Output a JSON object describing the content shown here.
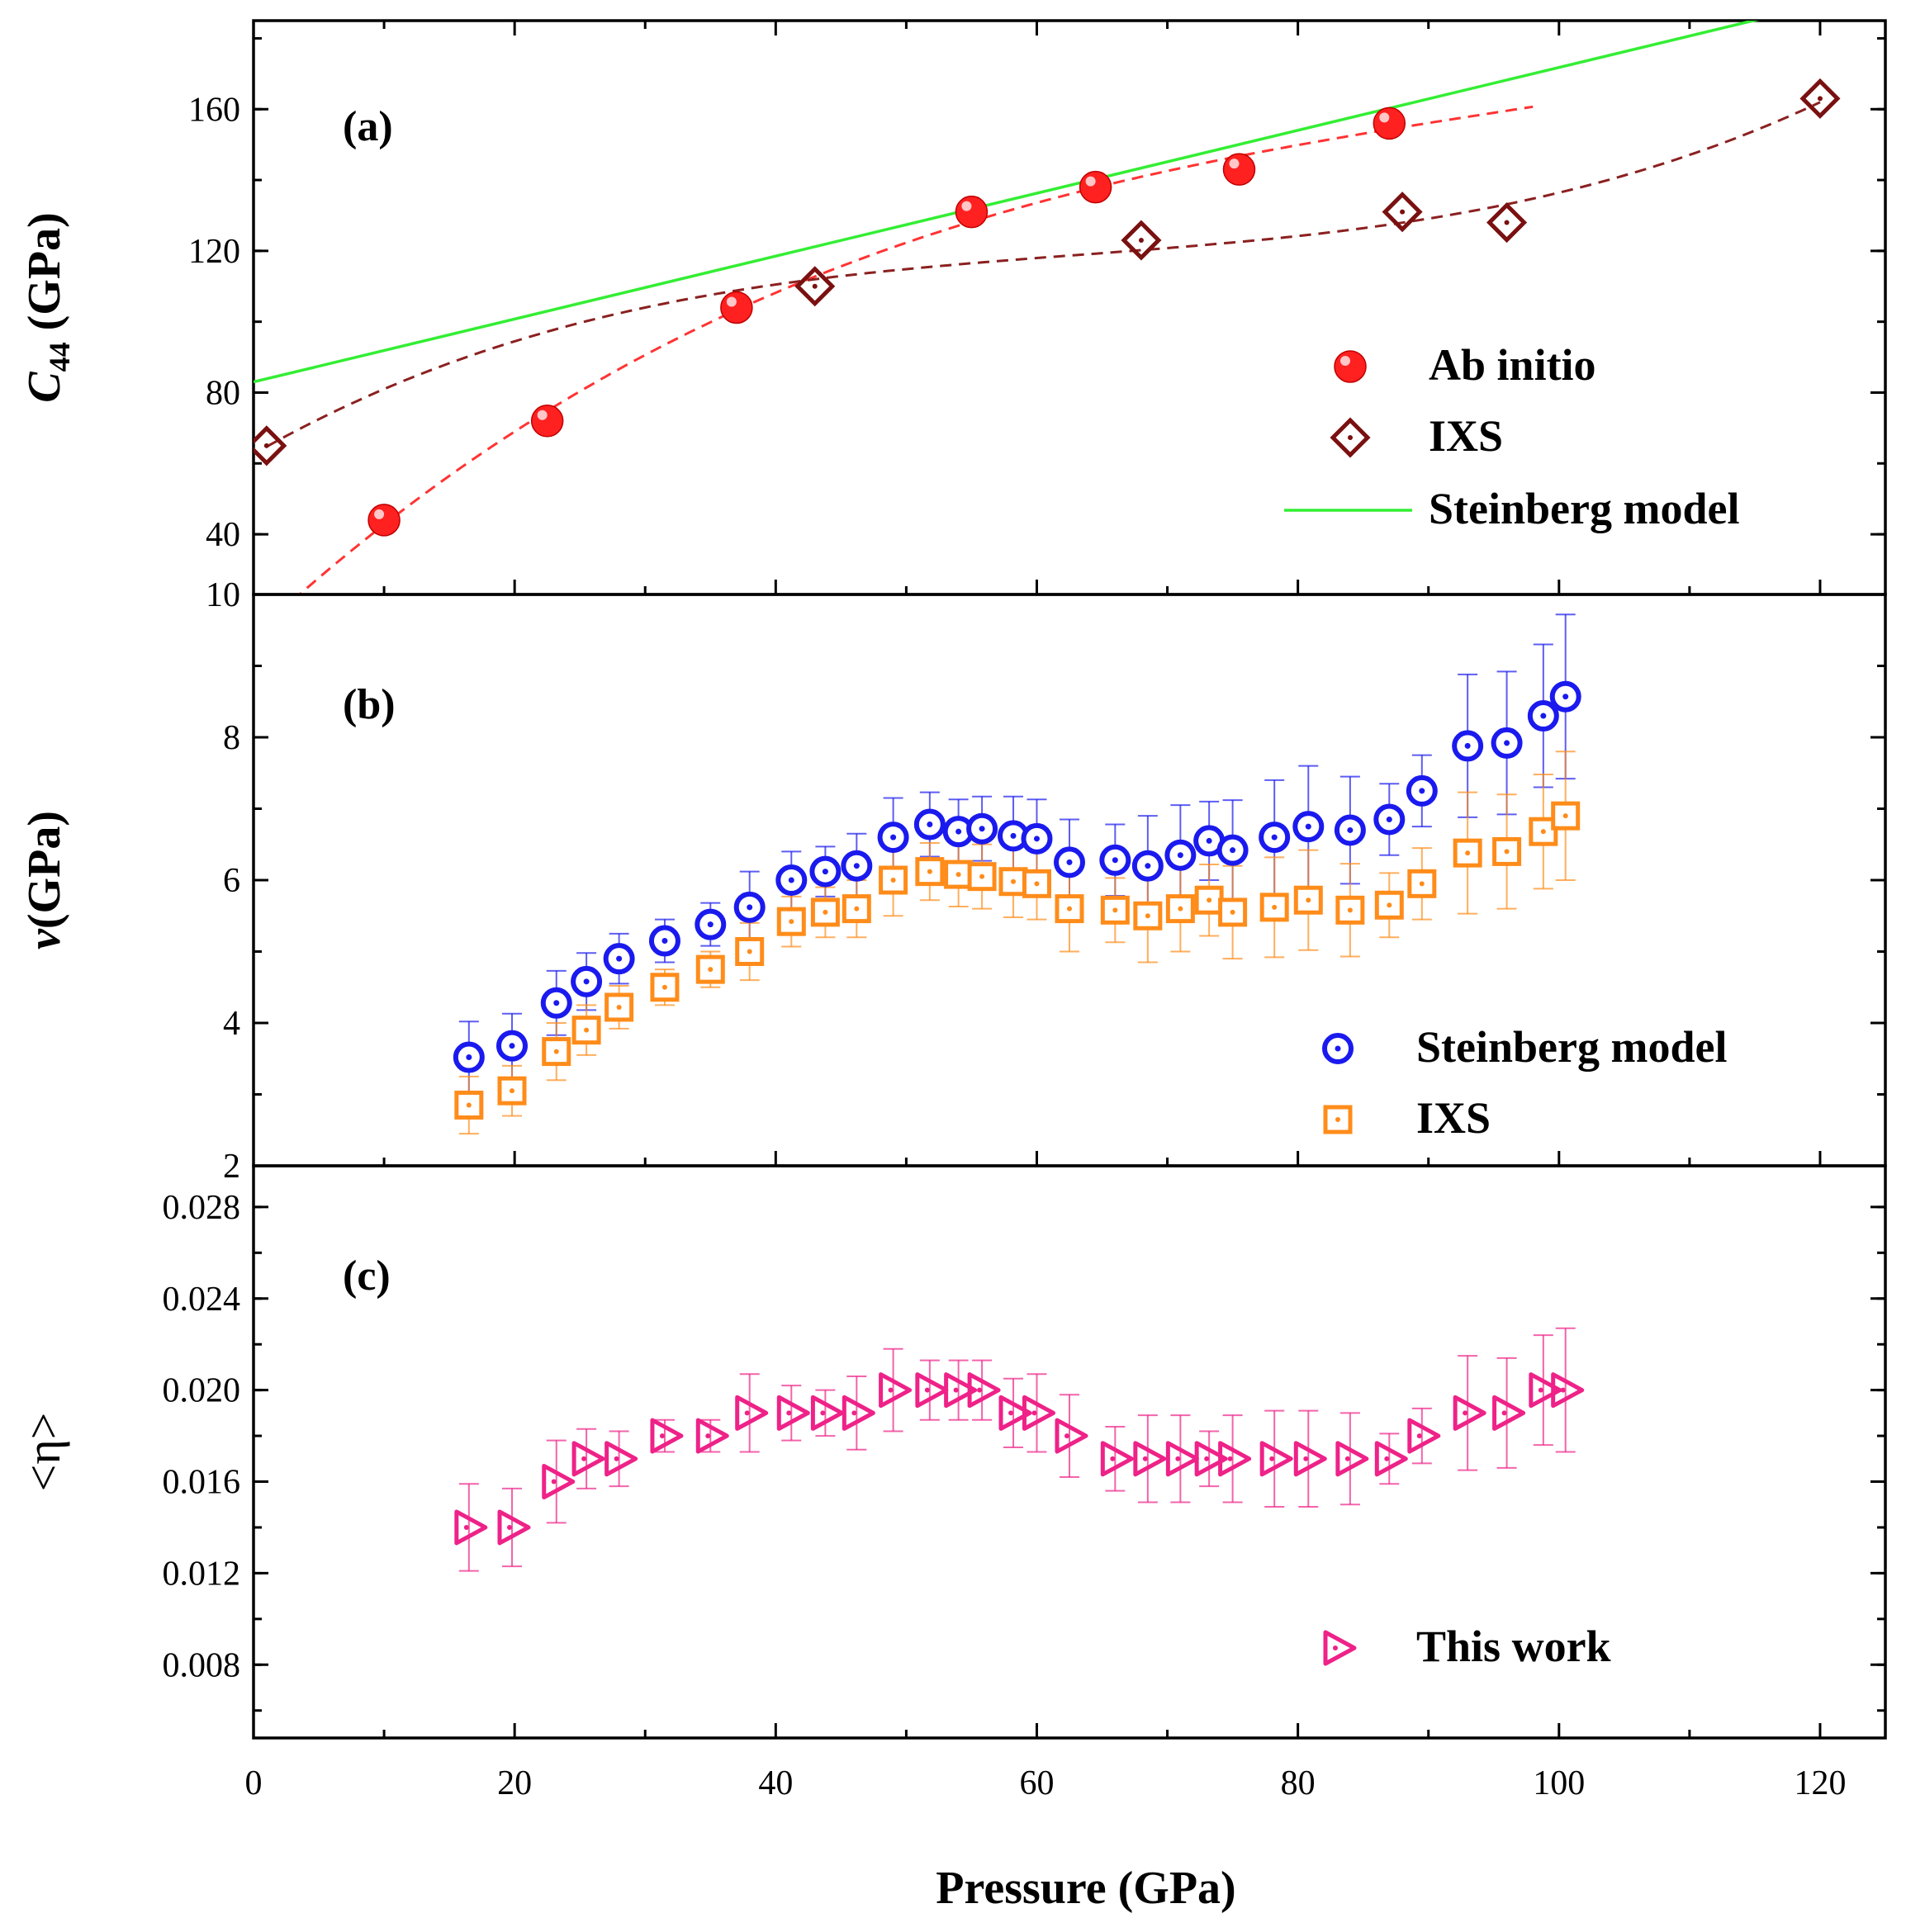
{
  "chart_data": [
    {
      "panel": "a",
      "panel_label": "(a)",
      "type": "scatter",
      "ylabel": "C44 (GPa)",
      "ylabel_main": "C",
      "ylabel_sub": "44",
      "ylabel_rest": " (GPa)",
      "xlim": [
        0,
        125
      ],
      "ylim": [
        23,
        185
      ],
      "yticks": [
        40,
        80,
        120,
        160
      ],
      "legend_position": "bottom-right",
      "series": [
        {
          "name": "Ab initio",
          "marker": "filled-sphere",
          "color": "#ff2020",
          "x": [
            10,
            22.5,
            37,
            55,
            64.5,
            75.5,
            87
          ],
          "y": [
            44,
            72,
            104,
            131,
            138,
            143,
            156
          ],
          "fit": {
            "style": "dashed",
            "color": "#ff3333",
            "x_range": [
              3,
              98
            ]
          }
        },
        {
          "name": "IXS",
          "marker": "diamond-open-dot",
          "color": "#7a1010",
          "x": [
            1,
            43,
            68,
            88,
            96,
            120
          ],
          "y": [
            65,
            110,
            123,
            131,
            128,
            163
          ],
          "fit": {
            "style": "dashed",
            "color": "#8b2020",
            "x_range": [
              1,
              120
            ]
          }
        },
        {
          "name": "Steinberg model",
          "marker": "line",
          "color": "#33ee33",
          "x": [
            0,
            116
          ],
          "y": [
            83,
            186
          ]
        }
      ]
    },
    {
      "panel": "b",
      "panel_label": "(b)",
      "type": "scatter",
      "ylabel": "ν(GPa)",
      "ylabel_main": "ν",
      "ylabel_rest": "(GPa)",
      "xlim": [
        0,
        125
      ],
      "ylim": [
        2,
        10
      ],
      "yticks": [
        2,
        4,
        6,
        8,
        10
      ],
      "legend_position": "bottom-right",
      "series": [
        {
          "name": "Steinberg model",
          "marker": "circle-open-dot",
          "color": "#1a1aee",
          "x": [
            16.5,
            19.8,
            23.2,
            25.5,
            28,
            31.5,
            35,
            38,
            41.2,
            43.8,
            46.2,
            49,
            51.8,
            54,
            55.8,
            58.2,
            60,
            62.5,
            66,
            68.5,
            71,
            73.2,
            75,
            78.2,
            80.8,
            84,
            87,
            89.5,
            93,
            96,
            98.8,
            100.5
          ],
          "y": [
            3.52,
            3.68,
            4.28,
            4.58,
            4.9,
            5.15,
            5.38,
            5.62,
            6.0,
            6.12,
            6.2,
            6.6,
            6.78,
            6.68,
            6.72,
            6.62,
            6.58,
            6.25,
            6.28,
            6.2,
            6.35,
            6.55,
            6.42,
            6.6,
            6.75,
            6.7,
            6.85,
            7.25,
            7.88,
            7.92,
            8.3,
            8.57
          ],
          "error": [
            0.5,
            0.45,
            0.45,
            0.4,
            0.35,
            0.3,
            0.3,
            0.5,
            0.4,
            0.35,
            0.45,
            0.55,
            0.45,
            0.45,
            0.45,
            0.55,
            0.55,
            0.6,
            0.5,
            0.7,
            0.7,
            0.55,
            0.7,
            0.8,
            0.85,
            0.75,
            0.5,
            0.5,
            1.0,
            1.0,
            1.0,
            1.15
          ]
        },
        {
          "name": "IXS",
          "marker": "square-open-dot",
          "color": "#ff8c1a",
          "x": [
            16.5,
            19.8,
            23.2,
            25.5,
            28,
            31.5,
            35,
            38,
            41.2,
            43.8,
            46.2,
            49,
            51.8,
            54,
            55.8,
            58.2,
            60,
            62.5,
            66,
            68.5,
            71,
            73.2,
            75,
            78.2,
            80.8,
            84,
            87,
            89.5,
            93,
            96,
            98.8,
            100.5
          ],
          "y": [
            2.85,
            3.05,
            3.6,
            3.9,
            4.22,
            4.5,
            4.75,
            5.0,
            5.42,
            5.55,
            5.6,
            6.0,
            6.12,
            6.08,
            6.05,
            5.98,
            5.95,
            5.6,
            5.58,
            5.5,
            5.6,
            5.72,
            5.55,
            5.62,
            5.72,
            5.58,
            5.65,
            5.95,
            6.38,
            6.4,
            6.68,
            6.9
          ],
          "error": [
            0.4,
            0.35,
            0.4,
            0.35,
            0.3,
            0.25,
            0.25,
            0.4,
            0.35,
            0.35,
            0.4,
            0.5,
            0.4,
            0.45,
            0.45,
            0.5,
            0.5,
            0.6,
            0.45,
            0.65,
            0.6,
            0.5,
            0.65,
            0.7,
            0.7,
            0.65,
            0.45,
            0.5,
            0.85,
            0.8,
            0.8,
            0.9
          ]
        }
      ]
    },
    {
      "panel": "c",
      "panel_label": "(c)",
      "type": "scatter",
      "ylabel": "<η>",
      "xlabel": "Pressure (GPa)",
      "xlim": [
        0,
        125
      ],
      "xticks": [
        0,
        20,
        40,
        60,
        80,
        100,
        120
      ],
      "ylim": [
        0.0048,
        0.0298
      ],
      "yticks": [
        0.008,
        0.012,
        0.016,
        0.02,
        0.024,
        0.028
      ],
      "ytick_labels": [
        "0.008",
        "0.012",
        "0.016",
        "0.020",
        "0.024",
        "0.028"
      ],
      "legend_position": "bottom-right",
      "series": [
        {
          "name": "This work",
          "marker": "triangle-right-open-dot",
          "color": "#ee2288",
          "x": [
            16.5,
            19.8,
            23.2,
            25.5,
            28,
            31.5,
            35,
            38,
            41.2,
            43.8,
            46.2,
            49,
            51.8,
            54,
            55.8,
            58.2,
            60,
            62.5,
            66,
            68.5,
            71,
            73.2,
            75,
            78.2,
            80.8,
            84,
            87,
            89.5,
            93,
            96,
            98.8,
            100.5
          ],
          "y": [
            0.014,
            0.014,
            0.016,
            0.017,
            0.017,
            0.018,
            0.018,
            0.019,
            0.019,
            0.019,
            0.019,
            0.02,
            0.02,
            0.02,
            0.02,
            0.019,
            0.019,
            0.018,
            0.017,
            0.017,
            0.017,
            0.017,
            0.017,
            0.017,
            0.017,
            0.017,
            0.017,
            0.018,
            0.019,
            0.019,
            0.02,
            0.02
          ],
          "error": [
            0.0019,
            0.0017,
            0.0018,
            0.0013,
            0.0012,
            0.0007,
            0.0007,
            0.0017,
            0.0012,
            0.001,
            0.0016,
            0.0018,
            0.0013,
            0.0013,
            0.0013,
            0.0015,
            0.0017,
            0.0018,
            0.0014,
            0.0019,
            0.0019,
            0.0012,
            0.0019,
            0.0021,
            0.0021,
            0.002,
            0.0011,
            0.0012,
            0.0025,
            0.0024,
            0.0024,
            0.0027
          ]
        }
      ]
    }
  ]
}
